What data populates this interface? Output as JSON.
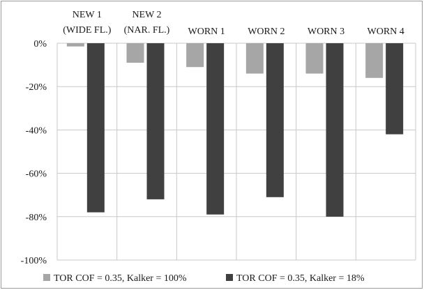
{
  "chart_data": {
    "type": "bar",
    "categories": [
      [
        "NEW 1",
        "(WIDE FL.)"
      ],
      [
        "NEW 2",
        "(NAR. FL.)"
      ],
      [
        "WORN 1"
      ],
      [
        "WORN 2"
      ],
      [
        "WORN 3"
      ],
      [
        "WORN 4"
      ]
    ],
    "series": [
      {
        "name": "TOR COF = 0.35, Kalker = 100%",
        "color": "#a6a6a6",
        "values": [
          -1.5,
          -9,
          -11,
          -14,
          -14,
          -16
        ]
      },
      {
        "name": "TOR COF = 0.35, Kalker = 18%",
        "color": "#404040",
        "values": [
          -78,
          -72,
          -79,
          -71,
          -80,
          -42
        ]
      }
    ],
    "ylim": [
      -100,
      0
    ],
    "yticks": [
      0,
      -20,
      -40,
      -60,
      -80,
      -100
    ],
    "ytick_format": "percent",
    "grid": true,
    "legend_position": "bottom",
    "title": "",
    "xlabel": "",
    "ylabel": ""
  }
}
